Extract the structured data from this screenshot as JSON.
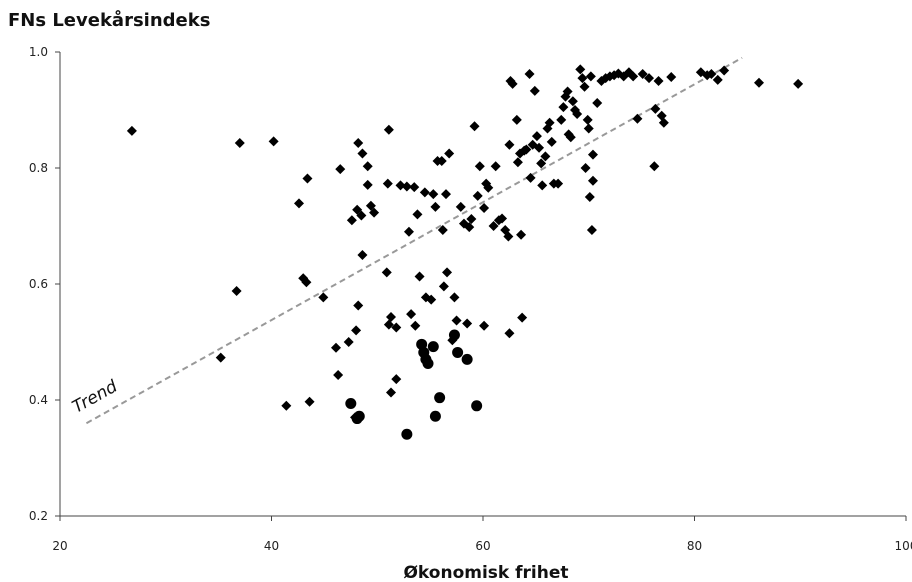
{
  "chart_data": {
    "type": "scatter",
    "title": "FNs Levekårsindeks",
    "xlabel": "Økonomisk frihet",
    "ylabel": "",
    "xlim": [
      20,
      100
    ],
    "ylim": [
      0.2,
      1.0
    ],
    "xticks": [
      "20",
      "40",
      "60",
      "80",
      "100"
    ],
    "yticks": [
      "0.2",
      "0.4",
      "0.6",
      "0.8",
      "1.0"
    ],
    "grid": false,
    "trend": {
      "label": "Trend",
      "x": [
        22.5,
        84.5
      ],
      "y": [
        0.36,
        0.99
      ]
    },
    "series": [
      {
        "marker": "diamond",
        "points": [
          [
            26.8,
            0.864
          ],
          [
            37.0,
            0.843
          ],
          [
            40.2,
            0.846
          ],
          [
            36.7,
            0.588
          ],
          [
            35.2,
            0.473
          ],
          [
            42.6,
            0.739
          ],
          [
            43.4,
            0.782
          ],
          [
            43.0,
            0.61
          ],
          [
            43.3,
            0.603
          ],
          [
            44.9,
            0.577
          ],
          [
            43.6,
            0.397
          ],
          [
            41.4,
            0.39
          ],
          [
            46.5,
            0.798
          ],
          [
            46.3,
            0.443
          ],
          [
            46.1,
            0.49
          ],
          [
            47.3,
            0.5
          ],
          [
            47.6,
            0.71
          ],
          [
            48.1,
            0.728
          ],
          [
            48.5,
            0.718
          ],
          [
            48.2,
            0.843
          ],
          [
            48.6,
            0.825
          ],
          [
            49.1,
            0.803
          ],
          [
            49.4,
            0.735
          ],
          [
            49.7,
            0.723
          ],
          [
            49.1,
            0.771
          ],
          [
            48.6,
            0.65
          ],
          [
            48.2,
            0.563
          ],
          [
            48.0,
            0.52
          ],
          [
            47.9,
            0.37
          ],
          [
            51.1,
            0.866
          ],
          [
            50.9,
            0.62
          ],
          [
            51.0,
            0.773
          ],
          [
            51.3,
            0.543
          ],
          [
            51.8,
            0.525
          ],
          [
            51.1,
            0.53
          ],
          [
            51.3,
            0.413
          ],
          [
            51.8,
            0.436
          ],
          [
            52.2,
            0.77
          ],
          [
            52.8,
            0.768
          ],
          [
            53.5,
            0.767
          ],
          [
            53.2,
            0.548
          ],
          [
            53.0,
            0.69
          ],
          [
            53.6,
            0.528
          ],
          [
            53.8,
            0.72
          ],
          [
            54.0,
            0.613
          ],
          [
            54.5,
            0.758
          ],
          [
            54.6,
            0.577
          ],
          [
            55.1,
            0.573
          ],
          [
            55.3,
            0.755
          ],
          [
            55.5,
            0.733
          ],
          [
            55.7,
            0.812
          ],
          [
            56.1,
            0.812
          ],
          [
            56.5,
            0.755
          ],
          [
            56.2,
            0.693
          ],
          [
            56.3,
            0.596
          ],
          [
            56.6,
            0.62
          ],
          [
            56.8,
            0.825
          ],
          [
            57.1,
            0.503
          ],
          [
            57.3,
            0.577
          ],
          [
            57.5,
            0.537
          ],
          [
            57.9,
            0.733
          ],
          [
            58.2,
            0.704
          ],
          [
            58.5,
            0.532
          ],
          [
            58.9,
            0.712
          ],
          [
            58.7,
            0.698
          ],
          [
            59.2,
            0.872
          ],
          [
            59.5,
            0.752
          ],
          [
            59.7,
            0.803
          ],
          [
            60.1,
            0.731
          ],
          [
            60.3,
            0.773
          ],
          [
            60.5,
            0.766
          ],
          [
            60.1,
            0.528
          ],
          [
            61.2,
            0.803
          ],
          [
            61.0,
            0.7
          ],
          [
            61.5,
            0.71
          ],
          [
            61.8,
            0.713
          ],
          [
            62.1,
            0.693
          ],
          [
            62.4,
            0.682
          ],
          [
            62.5,
            0.515
          ],
          [
            62.6,
            0.95
          ],
          [
            62.8,
            0.945
          ],
          [
            62.5,
            0.84
          ],
          [
            63.2,
            0.883
          ],
          [
            63.3,
            0.81
          ],
          [
            63.5,
            0.825
          ],
          [
            63.6,
            0.685
          ],
          [
            63.7,
            0.542
          ],
          [
            63.9,
            0.83
          ],
          [
            64.1,
            0.832
          ],
          [
            64.4,
            0.962
          ],
          [
            64.5,
            0.783
          ],
          [
            64.7,
            0.84
          ],
          [
            64.9,
            0.933
          ],
          [
            65.1,
            0.855
          ],
          [
            65.3,
            0.835
          ],
          [
            65.5,
            0.808
          ],
          [
            65.6,
            0.77
          ],
          [
            65.9,
            0.82
          ],
          [
            66.1,
            0.868
          ],
          [
            66.3,
            0.878
          ],
          [
            66.5,
            0.845
          ],
          [
            66.7,
            0.773
          ],
          [
            67.1,
            0.773
          ],
          [
            67.4,
            0.883
          ],
          [
            67.6,
            0.905
          ],
          [
            67.8,
            0.923
          ],
          [
            68.0,
            0.932
          ],
          [
            68.1,
            0.858
          ],
          [
            68.3,
            0.853
          ],
          [
            68.5,
            0.915
          ],
          [
            68.7,
            0.9
          ],
          [
            68.9,
            0.893
          ],
          [
            69.2,
            0.97
          ],
          [
            69.4,
            0.955
          ],
          [
            69.6,
            0.94
          ],
          [
            69.7,
            0.8
          ],
          [
            69.9,
            0.883
          ],
          [
            70.0,
            0.868
          ],
          [
            70.2,
            0.958
          ],
          [
            70.4,
            0.823
          ],
          [
            70.4,
            0.778
          ],
          [
            70.1,
            0.75
          ],
          [
            70.3,
            0.693
          ],
          [
            70.8,
            0.912
          ],
          [
            71.2,
            0.95
          ],
          [
            71.6,
            0.955
          ],
          [
            72.0,
            0.958
          ],
          [
            72.4,
            0.96
          ],
          [
            72.8,
            0.963
          ],
          [
            73.3,
            0.958
          ],
          [
            73.8,
            0.965
          ],
          [
            74.2,
            0.958
          ],
          [
            74.6,
            0.885
          ],
          [
            75.1,
            0.962
          ],
          [
            75.7,
            0.955
          ],
          [
            76.2,
            0.803
          ],
          [
            76.3,
            0.902
          ],
          [
            76.6,
            0.95
          ],
          [
            76.9,
            0.89
          ],
          [
            77.1,
            0.878
          ],
          [
            77.8,
            0.957
          ],
          [
            80.6,
            0.965
          ],
          [
            81.2,
            0.96
          ],
          [
            81.6,
            0.962
          ],
          [
            82.2,
            0.952
          ],
          [
            82.8,
            0.968
          ],
          [
            86.1,
            0.947
          ],
          [
            89.8,
            0.945
          ]
        ]
      },
      {
        "marker": "circle",
        "points": [
          [
            47.5,
            0.394
          ],
          [
            48.1,
            0.368
          ],
          [
            48.3,
            0.372
          ],
          [
            52.8,
            0.341
          ],
          [
            54.2,
            0.496
          ],
          [
            54.4,
            0.482
          ],
          [
            54.6,
            0.47
          ],
          [
            54.8,
            0.463
          ],
          [
            55.3,
            0.492
          ],
          [
            55.5,
            0.372
          ],
          [
            55.9,
            0.404
          ],
          [
            57.3,
            0.512
          ],
          [
            57.6,
            0.482
          ],
          [
            58.5,
            0.47
          ],
          [
            59.4,
            0.39
          ]
        ]
      }
    ]
  }
}
